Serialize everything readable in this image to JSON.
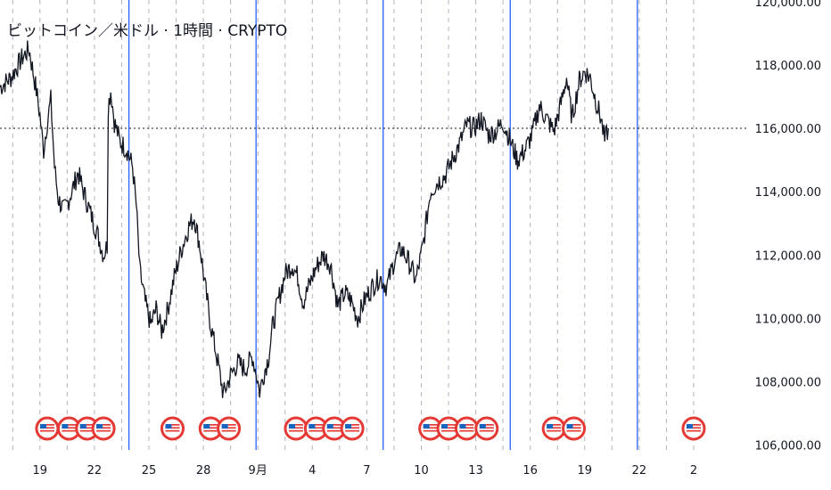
{
  "chart_data": {
    "type": "line",
    "title": "ビットコイン／米ドル · 1時間 · CRYPTO",
    "y_ticks": [
      "106,000.00",
      "108,000.00",
      "110,000.00",
      "112,000.00",
      "114,000.00",
      "116,000.00",
      "118,000.00",
      "120,000.00"
    ],
    "y_tick_values": [
      106000,
      108000,
      110000,
      112000,
      114000,
      116000,
      118000,
      120000
    ],
    "ylim": [
      105850,
      120050
    ],
    "x_ticks": [
      "19",
      "22",
      "25",
      "28",
      "9月",
      "4",
      "7",
      "10",
      "13",
      "16",
      "19",
      "22",
      "2"
    ],
    "x_tick_days": [
      0,
      3,
      6,
      9,
      12,
      15,
      18,
      21,
      24,
      27,
      30,
      33,
      36
    ],
    "xlim_days": [
      -2.2,
      38.8
    ],
    "week_separators_days": [
      4.9,
      11.9,
      18.9,
      25.9,
      32.9
    ],
    "current_price": 116000,
    "event_flag_days": [
      0.4,
      1.6,
      2.6,
      3.5,
      7.3,
      9.4,
      10.4,
      14.1,
      15.2,
      16.2,
      17.2,
      21.5,
      22.5,
      23.5,
      24.6,
      28.3,
      29.4,
      36.0
    ],
    "colors": {
      "line": "#131722",
      "separator": "#2962ff",
      "grid": "#aeb4bf",
      "flag_red": "#e53935",
      "flag_blue": "#1565c0"
    },
    "series": [
      {
        "values": [
          [
            -2.2,
            117300
          ],
          [
            -1.6,
            117600
          ],
          [
            -1.0,
            118200
          ],
          [
            -0.6,
            118500
          ],
          [
            -0.2,
            117200
          ],
          [
            0.0,
            116400
          ],
          [
            0.2,
            115300
          ],
          [
            0.4,
            116200
          ],
          [
            0.6,
            116900
          ],
          [
            0.8,
            114800
          ],
          [
            1.0,
            113800
          ],
          [
            1.3,
            113400
          ],
          [
            1.5,
            113600
          ],
          [
            1.8,
            114100
          ],
          [
            2.1,
            114600
          ],
          [
            2.4,
            114000
          ],
          [
            2.8,
            113300
          ],
          [
            3.2,
            112600
          ],
          [
            3.5,
            112000
          ],
          [
            3.7,
            112300
          ],
          [
            3.76,
            116700
          ],
          [
            3.9,
            117200
          ],
          [
            4.1,
            116200
          ],
          [
            4.4,
            115600
          ],
          [
            4.8,
            115300
          ],
          [
            5.1,
            114800
          ],
          [
            5.3,
            113600
          ],
          [
            5.5,
            111500
          ],
          [
            5.8,
            110500
          ],
          [
            6.1,
            109800
          ],
          [
            6.4,
            110300
          ],
          [
            6.7,
            109600
          ],
          [
            7.0,
            110200
          ],
          [
            7.4,
            111300
          ],
          [
            7.8,
            112200
          ],
          [
            8.2,
            112900
          ],
          [
            8.5,
            113200
          ],
          [
            8.8,
            112300
          ],
          [
            9.1,
            111000
          ],
          [
            9.4,
            109800
          ],
          [
            9.8,
            108600
          ],
          [
            10.1,
            107600
          ],
          [
            10.5,
            108200
          ],
          [
            10.9,
            108600
          ],
          [
            11.3,
            108400
          ],
          [
            11.7,
            108800
          ],
          [
            11.9,
            108300
          ],
          [
            12.1,
            107700
          ],
          [
            12.3,
            108200
          ],
          [
            12.6,
            108800
          ],
          [
            12.8,
            109700
          ],
          [
            13.1,
            110500
          ],
          [
            13.5,
            111400
          ],
          [
            13.9,
            111700
          ],
          [
            14.2,
            111300
          ],
          [
            14.5,
            110500
          ],
          [
            14.8,
            111000
          ],
          [
            15.2,
            111600
          ],
          [
            15.6,
            112000
          ],
          [
            16.0,
            111700
          ],
          [
            16.4,
            110400
          ],
          [
            16.8,
            110800
          ],
          [
            17.1,
            110600
          ],
          [
            17.5,
            110000
          ],
          [
            17.9,
            110600
          ],
          [
            18.3,
            111000
          ],
          [
            18.7,
            111300
          ],
          [
            19.1,
            111000
          ],
          [
            19.5,
            111800
          ],
          [
            19.9,
            112200
          ],
          [
            20.3,
            111800
          ],
          [
            20.7,
            111200
          ],
          [
            21.1,
            112300
          ],
          [
            21.5,
            114000
          ],
          [
            21.9,
            114300
          ],
          [
            22.3,
            114500
          ],
          [
            22.7,
            115000
          ],
          [
            23.1,
            115500
          ],
          [
            23.5,
            116100
          ],
          [
            23.9,
            116000
          ],
          [
            24.3,
            116300
          ],
          [
            24.7,
            115800
          ],
          [
            25.1,
            115900
          ],
          [
            25.5,
            116200
          ],
          [
            25.9,
            115600
          ],
          [
            26.3,
            115000
          ],
          [
            26.7,
            115300
          ],
          [
            27.1,
            115800
          ],
          [
            27.5,
            116700
          ],
          [
            27.9,
            116300
          ],
          [
            28.3,
            115900
          ],
          [
            28.7,
            116800
          ],
          [
            29.0,
            117600
          ],
          [
            29.3,
            116300
          ],
          [
            29.7,
            117500
          ],
          [
            30.0,
            117800
          ],
          [
            30.3,
            117600
          ],
          [
            30.6,
            116900
          ],
          [
            30.9,
            116300
          ],
          [
            31.1,
            115600
          ],
          [
            31.3,
            116000
          ]
        ]
      }
    ]
  }
}
